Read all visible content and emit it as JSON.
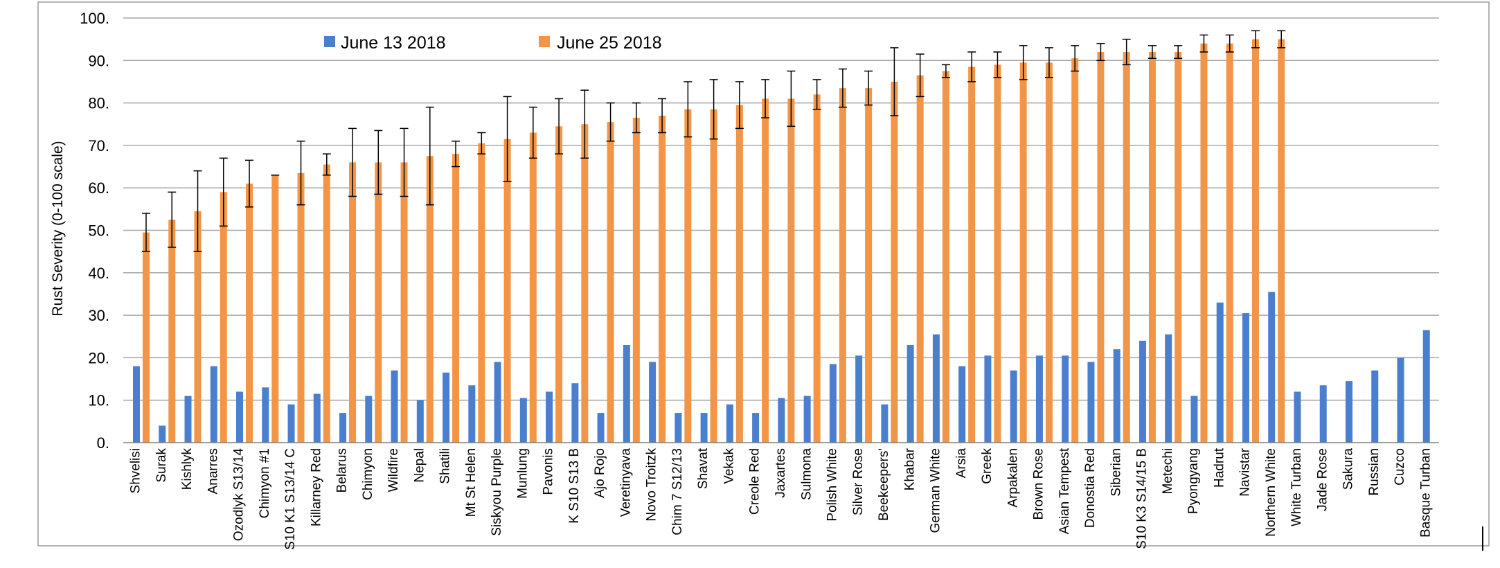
{
  "chart_data": {
    "type": "bar",
    "title": "",
    "xlabel": "",
    "ylabel": "Rust Severity (0-100 scale)",
    "ylim": [
      0,
      100
    ],
    "y_ticks": [
      "0.",
      "10.",
      "20.",
      "30.",
      "40.",
      "50.",
      "60.",
      "70.",
      "80.",
      "90.",
      "100."
    ],
    "grid": true,
    "legend_position": "top",
    "categories": [
      "Shvelisi",
      "Surak",
      "Kishlyk",
      "Anarres",
      "Ozodlyk S13/14",
      "Chimyon #1",
      "S10 K1 S13/14 C",
      "Killarney Red",
      "Belarus",
      "Chimyon",
      "Wildfire",
      "Nepal",
      "Shatili",
      "Mt St Helen",
      "Siskyou Purple",
      "Munlung",
      "Pavonis",
      "K S10 S13 B",
      "Ajo Rojo",
      "Veretinyava",
      "Novo Troitzk",
      "Chim 7 S12/13",
      "Shavat",
      "Vekak",
      "Creole Red",
      "Jaxartes",
      "Sulmona",
      "Polish White",
      "Silver Rose",
      "Beekeepers'",
      "Khabar",
      "German White",
      "Arsia",
      "Greek",
      "Arpakalen",
      "Brown Rose",
      "Asian Tempest",
      "Donostia Red",
      "Siberian",
      "S10 K3 S14/15 B",
      "Metechi",
      "Pyongyang",
      "Hadrut",
      "Navistar",
      "Northern White",
      "White Turban",
      "Jade Rose",
      "Sakura",
      "Russian",
      "Cuzco",
      "Basque Turban"
    ],
    "series": [
      {
        "name": "June 13 2018",
        "color": "#4a7fcf",
        "values": [
          18,
          4,
          11,
          18,
          12,
          13,
          9,
          11.5,
          7,
          11,
          17,
          10,
          16.5,
          13.5,
          19,
          10.5,
          12,
          14,
          7,
          23,
          19,
          7,
          7,
          9,
          7,
          10.5,
          11,
          18.5,
          20.5,
          9,
          23,
          25.5,
          18,
          20.5,
          17,
          20.5,
          20.5,
          19,
          22,
          24,
          25.5,
          11,
          33,
          30.5,
          35.5,
          12,
          13.5,
          14.5,
          17,
          20,
          26.5
        ]
      },
      {
        "name": "June 25 2018",
        "color": "#f29547",
        "values": [
          49.5,
          52.5,
          54.5,
          59,
          61,
          63,
          63.5,
          65.5,
          66,
          66,
          66,
          67.5,
          68,
          70.5,
          71.5,
          73,
          74.5,
          75,
          75.5,
          76.5,
          77,
          78.5,
          78.5,
          79.5,
          81,
          81,
          82,
          83.5,
          83.5,
          85,
          86.5,
          87.5,
          88.5,
          89,
          89.5,
          89.5,
          90.5,
          92,
          92,
          92,
          92,
          94,
          94,
          95,
          95,
          null,
          null,
          null,
          null,
          null,
          null
        ],
        "error": [
          4.5,
          6.5,
          9.5,
          8,
          5.5,
          0,
          7.5,
          2.5,
          8,
          7.5,
          8,
          11.5,
          3,
          2.5,
          10,
          6,
          6.5,
          8,
          4.5,
          3.5,
          4,
          6.5,
          7,
          5.5,
          4.5,
          6.5,
          3.5,
          4.5,
          4,
          8,
          5,
          1.5,
          3.5,
          3,
          4,
          3.5,
          3,
          2,
          3,
          1.5,
          1.5,
          2,
          2,
          2,
          2,
          null,
          null,
          null,
          null,
          null,
          null
        ]
      }
    ]
  }
}
